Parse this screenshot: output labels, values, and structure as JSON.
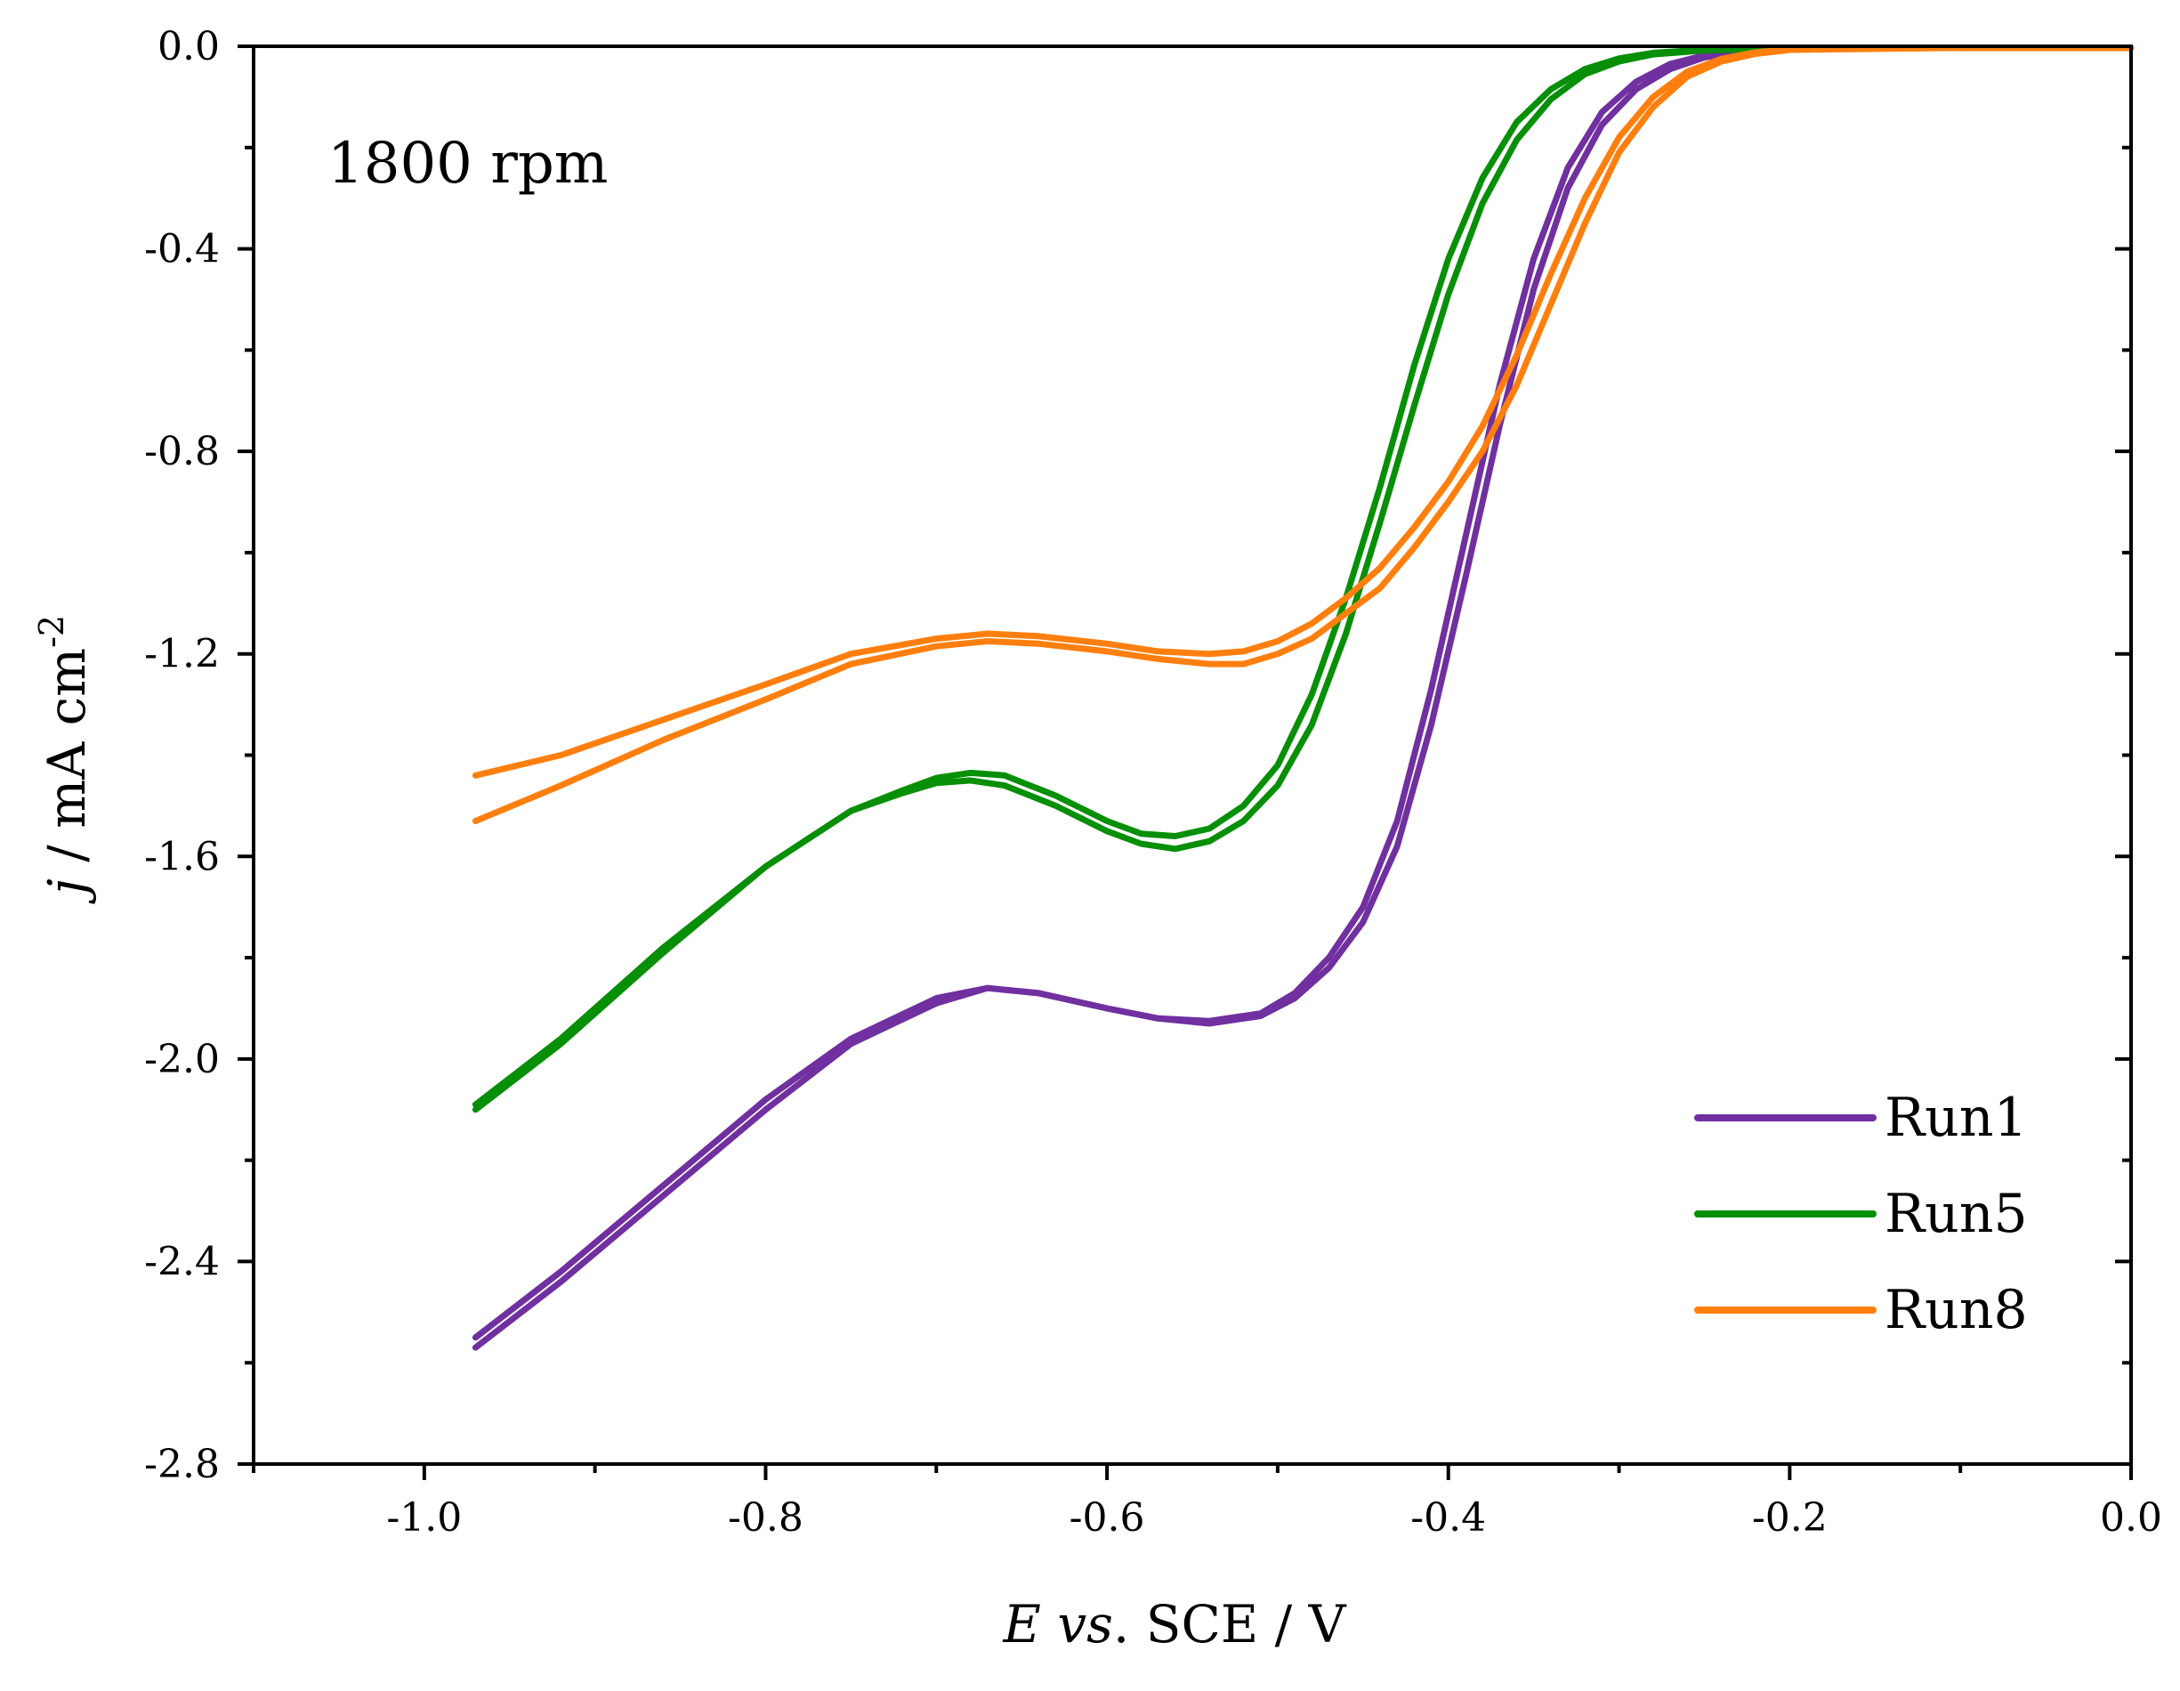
{
  "chart_data": {
    "type": "line",
    "title": "",
    "annotation": "1800 rpm",
    "xlabel": {
      "italic": "E",
      "italic2": "vs",
      "rest": ". SCE / V"
    },
    "ylabel": {
      "italic": "j",
      "rest": " / mA cm",
      "sup": "-2"
    },
    "xlim": [
      -1.1,
      0.0
    ],
    "ylim": [
      -2.8,
      0.0
    ],
    "x_ticks": [
      -1.0,
      -0.8,
      -0.6,
      -0.4,
      -0.2,
      0.0
    ],
    "x_tick_labels": [
      "-1.0",
      "-0.8",
      "-0.6",
      "-0.4",
      "-0.2",
      "0.0"
    ],
    "y_ticks": [
      0.0,
      -0.4,
      -0.8,
      -1.2,
      -1.6,
      -2.0,
      -2.4,
      -2.8
    ],
    "y_tick_labels": [
      "0.0",
      "-0.4",
      "-0.8",
      "-1.2",
      "-1.6",
      "-2.0",
      "-2.4",
      "-2.8"
    ],
    "legend_position": "bottom-right",
    "grid": false,
    "series": [
      {
        "name": "Run1",
        "color": "#7030a0",
        "sweeps": [
          {
            "x": [
              -0.97,
              -0.92,
              -0.86,
              -0.8,
              -0.75,
              -0.7,
              -0.67,
              -0.64,
              -0.6,
              -0.57,
              -0.54,
              -0.51,
              -0.49,
              -0.47,
              -0.45,
              -0.43,
              -0.41,
              -0.39,
              -0.37,
              -0.35,
              -0.33,
              -0.31,
              -0.29,
              -0.27,
              -0.25,
              -0.23,
              -0.21,
              -0.18,
              -0.1,
              0.0
            ],
            "y": [
              -2.55,
              -2.42,
              -2.25,
              -2.08,
              -1.96,
              -1.88,
              -1.86,
              -1.87,
              -1.9,
              -1.92,
              -1.925,
              -1.91,
              -1.87,
              -1.8,
              -1.7,
              -1.53,
              -1.27,
              -0.97,
              -0.67,
              -0.42,
              -0.24,
              -0.13,
              -0.07,
              -0.035,
              -0.018,
              -0.01,
              -0.006,
              -0.004,
              -0.003,
              -0.003
            ]
          },
          {
            "x": [
              -0.97,
              -0.92,
              -0.86,
              -0.8,
              -0.75,
              -0.7,
              -0.67,
              -0.64,
              -0.6,
              -0.57,
              -0.54,
              -0.51,
              -0.49,
              -0.47,
              -0.45,
              -0.43,
              -0.41,
              -0.39,
              -0.37,
              -0.35,
              -0.33,
              -0.31,
              -0.29,
              -0.27,
              -0.25,
              -0.23,
              -0.21,
              -0.18,
              -0.1,
              0.0
            ],
            "y": [
              -2.57,
              -2.44,
              -2.27,
              -2.1,
              -1.97,
              -1.89,
              -1.86,
              -1.87,
              -1.9,
              -1.92,
              -1.93,
              -1.915,
              -1.88,
              -1.82,
              -1.73,
              -1.58,
              -1.34,
              -1.05,
              -0.75,
              -0.48,
              -0.28,
              -0.155,
              -0.085,
              -0.045,
              -0.022,
              -0.012,
              -0.007,
              -0.004,
              -0.003,
              -0.003
            ]
          }
        ]
      },
      {
        "name": "Run5",
        "color": "#078f07",
        "sweeps": [
          {
            "x": [
              -0.97,
              -0.92,
              -0.86,
              -0.8,
              -0.75,
              -0.72,
              -0.7,
              -0.68,
              -0.66,
              -0.63,
              -0.6,
              -0.58,
              -0.56,
              -0.54,
              -0.52,
              -0.5,
              -0.48,
              -0.46,
              -0.44,
              -0.42,
              -0.4,
              -0.38,
              -0.36,
              -0.34,
              -0.32,
              -0.3,
              -0.28,
              -0.25,
              -0.2,
              -0.1,
              0.0
            ],
            "y": [
              -2.09,
              -1.96,
              -1.78,
              -1.62,
              -1.51,
              -1.47,
              -1.445,
              -1.435,
              -1.44,
              -1.48,
              -1.53,
              -1.555,
              -1.56,
              -1.545,
              -1.5,
              -1.42,
              -1.28,
              -1.09,
              -0.87,
              -0.63,
              -0.42,
              -0.26,
              -0.15,
              -0.085,
              -0.045,
              -0.024,
              -0.013,
              -0.007,
              -0.004,
              -0.003,
              -0.003
            ]
          },
          {
            "x": [
              -0.97,
              -0.92,
              -0.86,
              -0.8,
              -0.75,
              -0.72,
              -0.7,
              -0.68,
              -0.66,
              -0.63,
              -0.6,
              -0.58,
              -0.56,
              -0.54,
              -0.52,
              -0.5,
              -0.48,
              -0.46,
              -0.44,
              -0.42,
              -0.4,
              -0.38,
              -0.36,
              -0.34,
              -0.32,
              -0.3,
              -0.28,
              -0.25,
              -0.2,
              -0.1,
              0.0
            ],
            "y": [
              -2.1,
              -1.97,
              -1.79,
              -1.62,
              -1.51,
              -1.475,
              -1.455,
              -1.45,
              -1.46,
              -1.5,
              -1.55,
              -1.575,
              -1.585,
              -1.57,
              -1.53,
              -1.46,
              -1.34,
              -1.16,
              -0.94,
              -0.71,
              -0.49,
              -0.31,
              -0.185,
              -0.105,
              -0.055,
              -0.03,
              -0.016,
              -0.008,
              -0.004,
              -0.003,
              -0.003
            ]
          }
        ]
      },
      {
        "name": "Run8",
        "color": "#ff7f0e",
        "sweeps": [
          {
            "x": [
              -0.97,
              -0.92,
              -0.86,
              -0.8,
              -0.75,
              -0.7,
              -0.67,
              -0.64,
              -0.6,
              -0.57,
              -0.54,
              -0.52,
              -0.5,
              -0.48,
              -0.46,
              -0.44,
              -0.42,
              -0.4,
              -0.38,
              -0.36,
              -0.34,
              -0.32,
              -0.3,
              -0.28,
              -0.26,
              -0.24,
              -0.22,
              -0.2,
              -0.1,
              0.0
            ],
            "y": [
              -1.44,
              -1.4,
              -1.33,
              -1.26,
              -1.2,
              -1.17,
              -1.16,
              -1.165,
              -1.18,
              -1.195,
              -1.2,
              -1.195,
              -1.175,
              -1.14,
              -1.09,
              -1.03,
              -0.95,
              -0.86,
              -0.75,
              -0.61,
              -0.45,
              -0.3,
              -0.18,
              -0.1,
              -0.05,
              -0.025,
              -0.012,
              -0.006,
              -0.003,
              -0.003
            ]
          },
          {
            "x": [
              -0.97,
              -0.92,
              -0.86,
              -0.8,
              -0.75,
              -0.7,
              -0.67,
              -0.64,
              -0.6,
              -0.57,
              -0.54,
              -0.52,
              -0.5,
              -0.48,
              -0.46,
              -0.44,
              -0.42,
              -0.4,
              -0.38,
              -0.36,
              -0.34,
              -0.32,
              -0.3,
              -0.28,
              -0.26,
              -0.24,
              -0.22,
              -0.2,
              -0.1,
              0.0
            ],
            "y": [
              -1.53,
              -1.46,
              -1.37,
              -1.29,
              -1.22,
              -1.185,
              -1.175,
              -1.18,
              -1.195,
              -1.21,
              -1.22,
              -1.22,
              -1.2,
              -1.17,
              -1.12,
              -1.07,
              -0.99,
              -0.9,
              -0.8,
              -0.67,
              -0.51,
              -0.35,
              -0.21,
              -0.12,
              -0.06,
              -0.03,
              -0.015,
              -0.007,
              -0.003,
              -0.003
            ]
          }
        ]
      }
    ]
  }
}
